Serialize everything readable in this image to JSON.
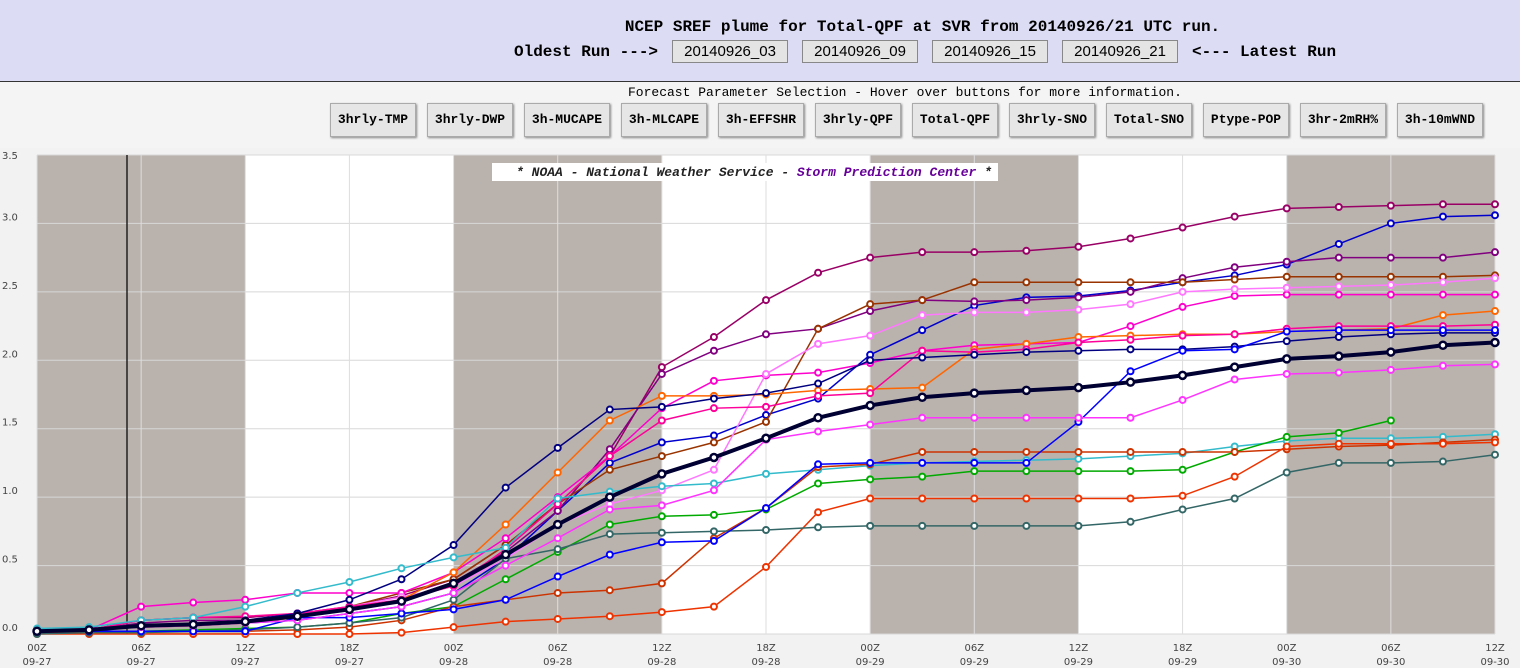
{
  "header": {
    "title": "NCEP SREF plume for Total-QPF at SVR from 20140926/21 UTC run.",
    "oldest": "Oldest Run --->",
    "latest": "<--- Latest Run",
    "runs": [
      "20140926_03",
      "20140926_09",
      "20140926_15",
      "20140926_21"
    ]
  },
  "params": {
    "caption": "Forecast Parameter Selection - Hover over buttons for more information.",
    "buttons": [
      "3hrly-TMP",
      "3hrly-DWP",
      "3h-MUCAPE",
      "3h-MLCAPE",
      "3h-EFFSHR",
      "3hrly-QPF",
      "Total-QPF",
      "3hrly-SNO",
      "Total-SNO",
      "Ptype-POP",
      "3hr-2mRH%",
      "3h-10mWND"
    ]
  },
  "chart_data": {
    "type": "line",
    "credit": [
      "* NOAA - National Weather Service - ",
      "Storm Prediction Center",
      " *"
    ],
    "categories": [
      [
        "00Z",
        "09-27"
      ],
      null,
      [
        "06Z",
        "09-27"
      ],
      null,
      [
        "12Z",
        "09-27"
      ],
      null,
      [
        "18Z",
        "09-27"
      ],
      null,
      [
        "00Z",
        "09-28"
      ],
      null,
      [
        "06Z",
        "09-28"
      ],
      null,
      [
        "12Z",
        "09-28"
      ],
      null,
      [
        "18Z",
        "09-28"
      ],
      null,
      [
        "00Z",
        "09-29"
      ],
      null,
      [
        "06Z",
        "09-29"
      ],
      null,
      [
        "12Z",
        "09-29"
      ],
      null,
      [
        "18Z",
        "09-29"
      ],
      null,
      [
        "00Z",
        "09-30"
      ],
      null,
      [
        "06Z",
        "09-30"
      ],
      null,
      [
        "12Z",
        "09-30"
      ]
    ],
    "ylim": [
      0,
      3.5
    ],
    "yticks": [
      {
        "value": 0,
        "label": "0.0"
      },
      0.5,
      {
        "value": 1,
        "label": "1.0"
      },
      1.5,
      {
        "value": 2,
        "label": "2.0"
      },
      2.5,
      {
        "value": 3,
        "label": "3.0"
      },
      3.5
    ],
    "grid": true,
    "series": [
      {
        "color": "#990066",
        "values": [
          0.02,
          0.03,
          0.1,
          0.12,
          0.12,
          0.15,
          0.2,
          0.28,
          0.4,
          0.65,
          0.95,
          1.3,
          1.95,
          2.17,
          2.44,
          2.64,
          2.75,
          2.79,
          2.79,
          2.8,
          2.83,
          2.89,
          2.97,
          3.05,
          3.11,
          3.12,
          3.13,
          3.14,
          3.14
        ]
      },
      {
        "color": "#0000cc",
        "values": [
          0.02,
          0.03,
          0.05,
          0.06,
          0.08,
          0.1,
          0.15,
          0.2,
          0.3,
          0.55,
          0.9,
          1.25,
          1.4,
          1.45,
          1.6,
          1.72,
          2.04,
          2.22,
          2.4,
          2.46,
          2.47,
          2.51,
          2.57,
          2.62,
          2.7,
          2.85,
          3.0,
          3.05,
          3.06
        ]
      },
      {
        "color": "#800080",
        "values": [
          0.02,
          0.03,
          0.08,
          0.1,
          0.1,
          0.12,
          0.18,
          0.25,
          0.38,
          0.6,
          0.9,
          1.35,
          1.9,
          2.07,
          2.19,
          2.23,
          2.36,
          2.44,
          2.43,
          2.44,
          2.46,
          2.5,
          2.6,
          2.68,
          2.72,
          2.75,
          2.75,
          2.75,
          2.79
        ]
      },
      {
        "color": "#993300",
        "values": [
          0.02,
          0.03,
          0.06,
          0.07,
          0.09,
          0.12,
          0.2,
          0.3,
          0.4,
          0.65,
          0.95,
          1.2,
          1.3,
          1.4,
          1.55,
          2.23,
          2.41,
          2.44,
          2.57,
          2.57,
          2.57,
          2.57,
          2.57,
          2.59,
          2.61,
          2.61,
          2.61,
          2.61,
          2.62
        ]
      },
      {
        "color": "#ff00cc",
        "values": [
          0.02,
          0.03,
          0.2,
          0.23,
          0.25,
          0.3,
          0.3,
          0.3,
          0.45,
          0.7,
          1.0,
          1.3,
          1.65,
          1.85,
          1.89,
          1.91,
          1.98,
          2.07,
          2.11,
          2.12,
          2.13,
          2.25,
          2.39,
          2.47,
          2.48,
          2.48,
          2.48,
          2.48,
          2.48
        ]
      },
      {
        "color": "#ff77ff",
        "values": [
          0.02,
          0.03,
          0.06,
          0.08,
          0.1,
          0.15,
          0.2,
          0.27,
          0.35,
          0.55,
          0.8,
          0.95,
          1.05,
          1.2,
          1.9,
          2.12,
          2.18,
          2.33,
          2.35,
          2.35,
          2.37,
          2.41,
          2.5,
          2.52,
          2.53,
          2.54,
          2.55,
          2.57,
          2.6
        ]
      },
      {
        "color": "#ff6600",
        "values": [
          0.02,
          0.03,
          0.05,
          0.06,
          0.08,
          0.12,
          0.18,
          0.25,
          0.45,
          0.8,
          1.18,
          1.56,
          1.74,
          1.74,
          1.75,
          1.78,
          1.79,
          1.8,
          2.08,
          2.12,
          2.17,
          2.18,
          2.19,
          2.19,
          2.21,
          2.22,
          2.23,
          2.33,
          2.36
        ]
      },
      {
        "color": "#ff0099",
        "values": [
          0.02,
          0.03,
          0.1,
          0.12,
          0.13,
          0.15,
          0.2,
          0.25,
          0.35,
          0.62,
          0.95,
          1.3,
          1.56,
          1.65,
          1.66,
          1.74,
          1.76,
          2.07,
          2.06,
          2.08,
          2.13,
          2.15,
          2.18,
          2.19,
          2.23,
          2.25,
          2.25,
          2.25,
          2.26
        ]
      },
      {
        "color": "#000080",
        "values": [
          0.02,
          0.03,
          0.05,
          0.07,
          0.1,
          0.15,
          0.25,
          0.4,
          0.65,
          1.07,
          1.36,
          1.64,
          1.66,
          1.72,
          1.76,
          1.83,
          2.0,
          2.02,
          2.04,
          2.06,
          2.07,
          2.08,
          2.08,
          2.1,
          2.14,
          2.17,
          2.19,
          2.2,
          2.2
        ]
      },
      {
        "color": "#33bbcc",
        "values": [
          0.04,
          0.05,
          0.1,
          0.12,
          0.2,
          0.3,
          0.38,
          0.48,
          0.56,
          0.63,
          0.99,
          1.04,
          1.08,
          1.1,
          1.17,
          1.2,
          1.23,
          1.25,
          1.26,
          1.27,
          1.28,
          1.3,
          1.32,
          1.37,
          1.41,
          1.43,
          1.43,
          1.44,
          1.46
        ]
      },
      {
        "color": "#00aa00",
        "values": [
          0.02,
          0.02,
          0.02,
          0.03,
          0.04,
          0.05,
          0.08,
          0.15,
          0.2,
          0.4,
          0.6,
          0.8,
          0.86,
          0.87,
          0.91,
          1.1,
          1.13,
          1.15,
          1.19,
          1.19,
          1.19,
          1.19,
          1.2,
          1.33,
          1.44,
          1.47,
          1.56,
          null,
          null
        ]
      },
      {
        "color": "#cc3300",
        "values": [
          0.01,
          0.01,
          0.02,
          0.02,
          0.02,
          0.03,
          0.05,
          0.1,
          0.2,
          0.25,
          0.3,
          0.32,
          0.37,
          0.7,
          0.92,
          1.22,
          1.24,
          1.33,
          1.33,
          1.33,
          1.33,
          1.33,
          1.33,
          1.33,
          1.35,
          1.37,
          1.38,
          1.4,
          1.42
        ]
      },
      {
        "color": "#ee3300",
        "values": [
          0,
          0,
          0,
          0,
          0,
          0,
          0,
          0.01,
          0.05,
          0.09,
          0.11,
          0.13,
          0.16,
          0.2,
          0.49,
          0.89,
          0.99,
          0.99,
          0.99,
          0.99,
          0.99,
          0.99,
          1.01,
          1.15,
          1.37,
          1.39,
          1.39,
          1.39,
          1.4
        ]
      },
      {
        "color": "#336666",
        "values": [
          0,
          0.01,
          0.01,
          0.02,
          0.03,
          0.05,
          0.08,
          0.12,
          0.25,
          0.55,
          0.62,
          0.73,
          0.74,
          0.75,
          0.76,
          0.78,
          0.79,
          0.79,
          0.79,
          0.79,
          0.79,
          0.82,
          0.91,
          0.99,
          1.18,
          1.25,
          1.25,
          1.26,
          1.31
        ]
      },
      {
        "color": "#0000ff",
        "values": [
          0.02,
          0.02,
          0.02,
          0.02,
          0.02,
          0.12,
          0.12,
          0.15,
          0.18,
          0.25,
          0.42,
          0.58,
          0.67,
          0.68,
          0.92,
          1.24,
          1.25,
          1.25,
          1.25,
          1.25,
          1.55,
          1.92,
          2.07,
          2.08,
          2.21,
          2.22,
          2.22,
          2.22,
          2.22
        ]
      },
      {
        "color": "#ff33ff",
        "values": [
          0.02,
          0.03,
          0.05,
          0.06,
          0.08,
          0.1,
          0.15,
          0.2,
          0.3,
          0.5,
          0.7,
          0.91,
          0.94,
          1.05,
          1.42,
          1.48,
          1.53,
          1.58,
          1.58,
          1.58,
          1.58,
          1.58,
          1.71,
          1.86,
          1.9,
          1.91,
          1.93,
          1.96,
          1.97
        ]
      },
      {
        "color": "#000033",
        "width": 4,
        "values": [
          0.02,
          0.03,
          0.06,
          0.07,
          0.09,
          0.13,
          0.18,
          0.24,
          0.37,
          0.58,
          0.8,
          1.0,
          1.17,
          1.29,
          1.43,
          1.58,
          1.67,
          1.73,
          1.76,
          1.78,
          1.8,
          1.84,
          1.89,
          1.95,
          2.01,
          2.03,
          2.06,
          2.11,
          2.13
        ]
      }
    ]
  }
}
